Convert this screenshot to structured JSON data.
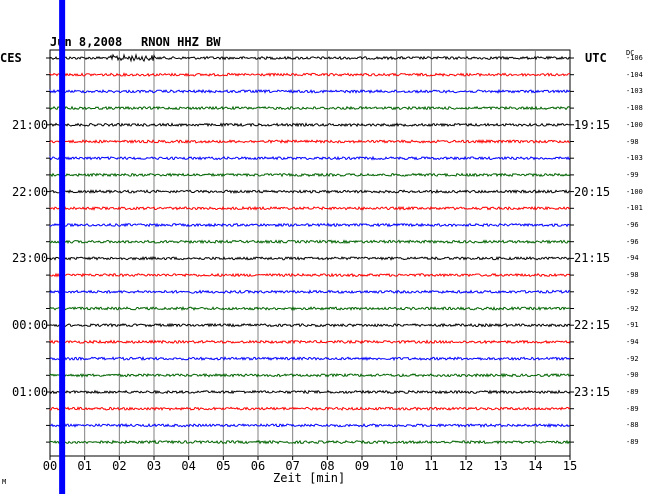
{
  "header": {
    "date": "Jun 8,2008",
    "station": "RNON HHZ BW"
  },
  "corner": {
    "left_label": "CES",
    "right_label": "UTC",
    "dc_label": "DC",
    "footer_mark": "M"
  },
  "colors": {
    "trace_cycle": [
      "#000000",
      "#ff0000",
      "#0000ff",
      "#006400"
    ],
    "grid": "#808080",
    "marker": "#0000ff"
  },
  "chart_data": {
    "type": "line",
    "title": "Jun 8,2008    RNON HHZ BW",
    "xlabel": "Zeit [min]",
    "ylabel": "",
    "xlim": [
      0,
      15
    ],
    "x_ticks": [
      "00",
      "01",
      "02",
      "03",
      "04",
      "05",
      "06",
      "07",
      "08",
      "09",
      "10",
      "11",
      "12",
      "13",
      "14",
      "15"
    ],
    "rows": 24,
    "left_time_labels": [
      {
        "row": 4,
        "label": "21:00"
      },
      {
        "row": 8,
        "label": "22:00"
      },
      {
        "row": 12,
        "label": "23:00"
      },
      {
        "row": 16,
        "label": "00:00"
      },
      {
        "row": 20,
        "label": "01:00"
      }
    ],
    "right_time_labels": [
      {
        "row": 4,
        "label": "19:15"
      },
      {
        "row": 8,
        "label": "20:15"
      },
      {
        "row": 12,
        "label": "21:15"
      },
      {
        "row": 16,
        "label": "22:15"
      },
      {
        "row": 20,
        "label": "23:15"
      }
    ],
    "dc_values": [
      "-106",
      "-104",
      "-103",
      "-108",
      "-100",
      "-98",
      "-103",
      "-99",
      "-100",
      "-101",
      "-96",
      "-96",
      "-94",
      "-98",
      "-92",
      "-92",
      "-91",
      "-94",
      "-92",
      "-90",
      "-89",
      "-89",
      "-88",
      "-89"
    ],
    "marker_minute": 0.35
  }
}
